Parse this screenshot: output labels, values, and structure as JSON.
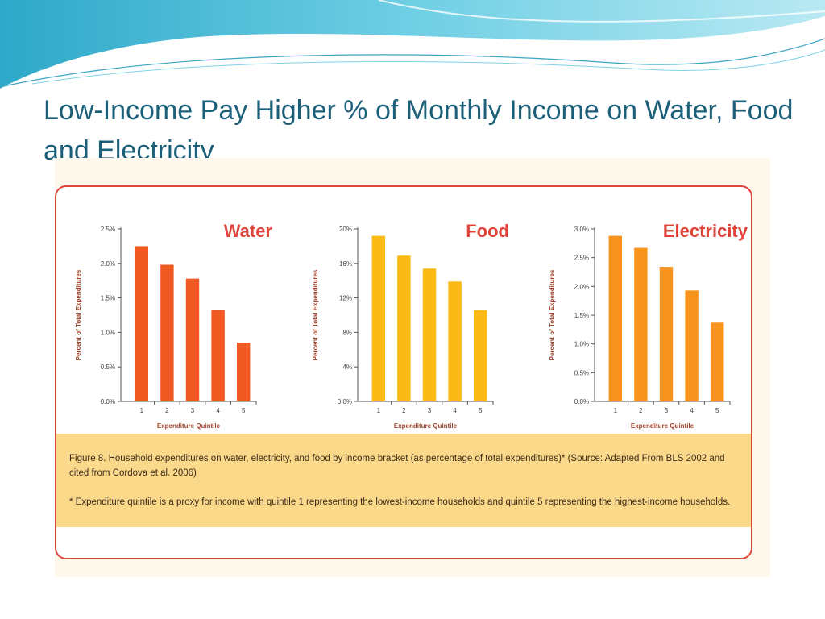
{
  "slide": {
    "title": "Low-Income Pay Higher % of Monthly Income on Water, Food and Electricity"
  },
  "colors": {
    "title": "#1b5f78",
    "frame": "#e0443a",
    "caption_bg": "#fbd98a",
    "water_bar": "#f05a22",
    "food_bar": "#fbba16",
    "electricity_bar": "#f7941d"
  },
  "caption": {
    "main": "Figure 8. Household expenditures on water, electricity, and food by income bracket (as percentage of total expenditures)* (Source: Adapted From BLS 2002 and cited from Cordova et al. 2006)",
    "note": "* Expenditure quintile is a proxy for income with quintile 1 representing the lowest-income households and quintile 5 representing the highest-income households."
  },
  "chart_data": [
    {
      "type": "bar",
      "title": "Water",
      "xlabel": "Expenditure Quintile",
      "ylabel": "Percent of Total Expenditures",
      "categories": [
        "1",
        "2",
        "3",
        "4",
        "5"
      ],
      "values": [
        2.25,
        1.98,
        1.78,
        1.33,
        0.85
      ],
      "ylim": [
        0,
        2.5
      ],
      "yticks": [
        0,
        0.5,
        1.0,
        1.5,
        2.0,
        2.5
      ],
      "ytick_labels": [
        "0.0%",
        "0.5%",
        "1.0%",
        "1.5%",
        "2.0%",
        "2.5%"
      ],
      "color": "#f05a22"
    },
    {
      "type": "bar",
      "title": "Food",
      "xlabel": "Expenditure Quintile",
      "ylabel": "Percent of Total Expenditures",
      "categories": [
        "1",
        "2",
        "3",
        "4",
        "5"
      ],
      "values": [
        19.2,
        16.9,
        15.4,
        13.9,
        10.6
      ],
      "ylim": [
        0,
        20
      ],
      "yticks": [
        0,
        4,
        8,
        12,
        16,
        20
      ],
      "ytick_labels": [
        "0.0%",
        "4%",
        "8%",
        "12%",
        "16%",
        "20%"
      ],
      "color": "#fbba16"
    },
    {
      "type": "bar",
      "title": "Electricity",
      "xlabel": "Expenditure Quintile",
      "ylabel": "Percent of Total Expenditures",
      "categories": [
        "1",
        "2",
        "3",
        "4",
        "5"
      ],
      "values": [
        2.88,
        2.67,
        2.34,
        1.93,
        1.37
      ],
      "ylim": [
        0,
        3.0
      ],
      "yticks": [
        0,
        0.5,
        1.0,
        1.5,
        2.0,
        2.5,
        3.0
      ],
      "ytick_labels": [
        "0.0%",
        "0.5%",
        "1.0%",
        "1.5%",
        "2.0%",
        "2.5%",
        "3.0%"
      ],
      "color": "#f7941d"
    }
  ]
}
